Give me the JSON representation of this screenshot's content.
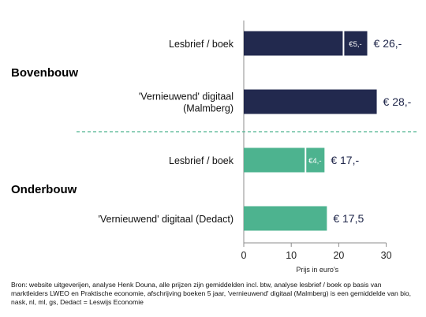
{
  "chart_data": {
    "type": "bar",
    "orientation": "horizontal",
    "stacked": true,
    "xlabel": "Prijs in euro's",
    "xlim": [
      0,
      30
    ],
    "xticks": [
      "0",
      "10",
      "20",
      "30"
    ],
    "groups": [
      {
        "name": "Bovenbouw",
        "color": "#22294e",
        "rows": [
          {
            "category": "Lesbrief / boek",
            "base": 21,
            "extra": 5,
            "extra_label": "€5,-",
            "total": 26,
            "total_label": "€ 26,-"
          },
          {
            "category": "'Vernieuwend' digitaal\n(Malmberg)",
            "base": 28,
            "extra": 0,
            "extra_label": "",
            "total": 28,
            "total_label": "€ 28,-"
          }
        ]
      },
      {
        "name": "Onderbouw",
        "color": "#4db38f",
        "rows": [
          {
            "category": "Lesbrief / boek",
            "base": 13,
            "extra": 4,
            "extra_label": "€4,-",
            "total": 17,
            "total_label": "€ 17,-"
          },
          {
            "category": "'Vernieuwend' digitaal (Dedact)",
            "base": 17.5,
            "extra": 0,
            "extra_label": "",
            "total": 17.5,
            "total_label": "€ 17,5"
          }
        ]
      }
    ],
    "divider_color": "#4db38f",
    "grid": false
  },
  "footnote": "Bron: website uitgeverijen, analyse Henk Douna, alle prijzen zijn gemiddelden incl. btw, analyse lesbrief / boek op basis van marktleiders LWEO en Praktische economie, afschrijving boeken 5 jaar, 'vernieuwend' digitaal (Malmberg) is een gemiddelde van bio, nask, nl, ml, gs, Dedact = Leswijs Economie"
}
